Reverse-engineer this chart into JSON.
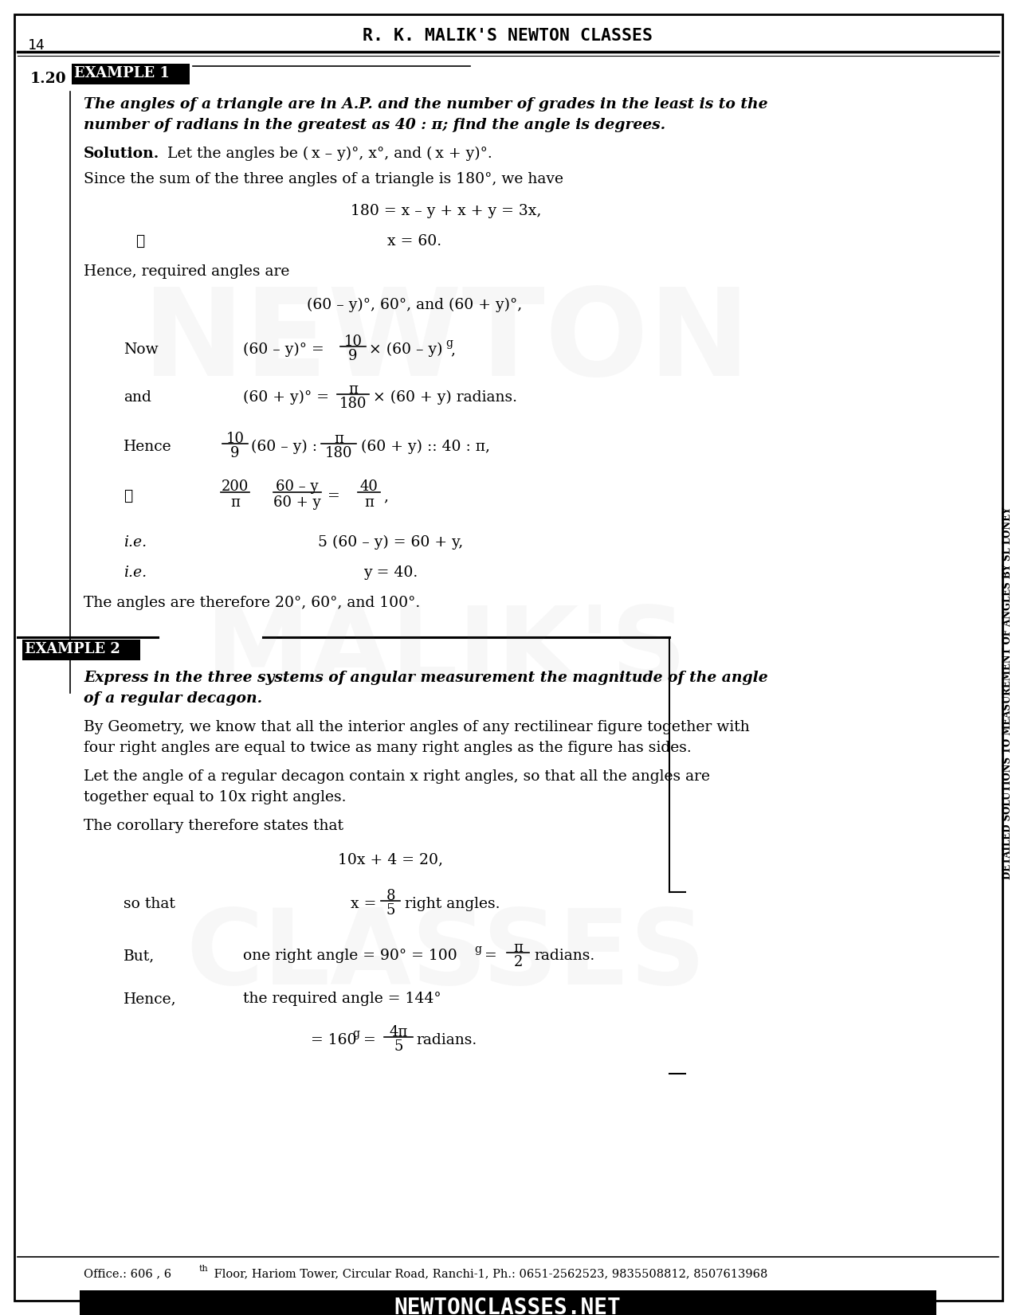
{
  "page_num": "14",
  "header_title": "R. K. MALIK'S NEWTON CLASSES",
  "bg_color": "#ffffff",
  "side_text": "DETAILED SOLUTIONS TO MEASUREMENT OF ANGLES BY SL LONEY",
  "footer_address": "Office.: 606 , 6",
  "footer_address2": "th",
  "footer_address3": " Floor, Hariom Tower, Circular Road, Ranchi-1, Ph.: 0651-2562523, 9835508812, 8507613968",
  "footer_website": "NEWTONCLASSES.NET"
}
